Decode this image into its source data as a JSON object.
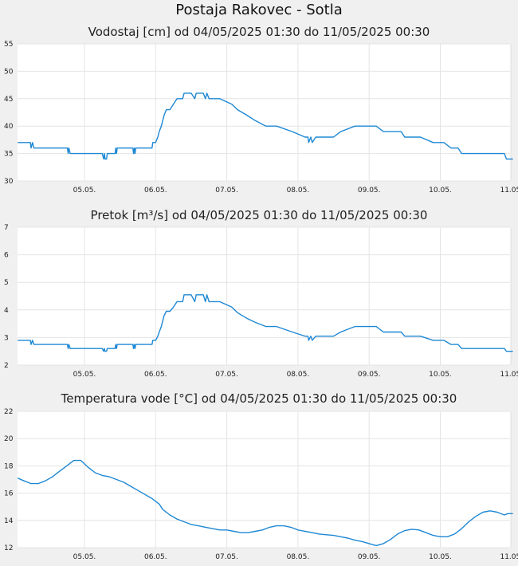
{
  "page_title": "Postaja Rakovec - Sotla",
  "chart_data": [
    {
      "type": "line",
      "title": "Vodostaj [cm] od 04/05/2025 01:30 do 11/05/2025 00:30",
      "x_tick_labels": [
        "05.05.",
        "06.05.",
        "07.05.",
        "08.05.",
        "09.05.",
        "10.05.",
        "11.05."
      ],
      "x_range": [
        0.0625,
        7.02
      ],
      "ylim": [
        30,
        55
      ],
      "y_ticks": [
        30,
        35,
        40,
        45,
        50,
        55
      ],
      "grid": true,
      "color": "#1e88d4",
      "series": [
        {
          "x": [
            0.0625,
            0.24,
            0.25,
            0.27,
            0.29,
            0.3,
            0.76,
            0.77,
            0.78,
            0.8,
            1.25,
            1.27,
            1.28,
            1.29,
            1.31,
            1.32,
            1.43,
            1.44,
            1.45,
            1.46,
            1.47,
            1.68,
            1.69,
            1.7,
            1.71,
            1.72,
            1.95,
            1.96,
            2.0,
            2.03,
            2.05,
            2.08,
            2.1,
            2.12,
            2.15,
            2.2,
            2.25,
            2.3,
            2.38,
            2.4,
            2.5,
            2.55,
            2.57,
            2.6,
            2.67,
            2.7,
            2.72,
            2.75,
            2.85,
            2.9,
            3.07,
            3.15,
            3.28,
            3.4,
            3.55,
            3.7,
            3.92,
            4.1,
            4.14,
            4.15,
            4.18,
            4.2,
            4.25,
            4.5,
            4.6,
            4.8,
            5.1,
            5.2,
            5.45,
            5.5,
            5.72,
            5.9,
            6.05,
            6.15,
            6.25,
            6.3,
            6.35,
            6.9,
            6.93,
            7.02
          ],
          "y": [
            37,
            37,
            36,
            37,
            36,
            36,
            36,
            35,
            36,
            35,
            35,
            34,
            35,
            34,
            34,
            35,
            35,
            36,
            35,
            36,
            36,
            36,
            35,
            36,
            35,
            36,
            36,
            37,
            37,
            38,
            39,
            40,
            41,
            42,
            43,
            43,
            44,
            45,
            45,
            46,
            46,
            45,
            46,
            46,
            46,
            45,
            46,
            45,
            45,
            45,
            44,
            43,
            42,
            41,
            40,
            40,
            39,
            38,
            38,
            37,
            38,
            37,
            38,
            38,
            39,
            40,
            40,
            39,
            39,
            38,
            38,
            37,
            37,
            36,
            36,
            35,
            35,
            35,
            34,
            34
          ]
        }
      ]
    },
    {
      "type": "line",
      "title": "Pretok [m³/s] od 04/05/2025 01:30 do 11/05/2025 00:30",
      "x_tick_labels": [
        "05.05.",
        "06.05.",
        "07.05.",
        "08.05.",
        "09.05.",
        "10.05.",
        "11.05."
      ],
      "x_range": [
        0.0625,
        7.02
      ],
      "ylim": [
        2,
        7
      ],
      "y_ticks": [
        2,
        3,
        4,
        5,
        6,
        7
      ],
      "grid": true,
      "color": "#1e88d4",
      "series": [
        {
          "x": [
            0.0625,
            0.24,
            0.25,
            0.27,
            0.29,
            0.3,
            0.76,
            0.77,
            0.78,
            0.8,
            1.25,
            1.27,
            1.28,
            1.29,
            1.31,
            1.32,
            1.43,
            1.44,
            1.45,
            1.46,
            1.47,
            1.68,
            1.69,
            1.7,
            1.71,
            1.72,
            1.95,
            1.96,
            2.0,
            2.03,
            2.05,
            2.08,
            2.1,
            2.12,
            2.15,
            2.2,
            2.25,
            2.3,
            2.38,
            2.4,
            2.5,
            2.55,
            2.57,
            2.6,
            2.67,
            2.7,
            2.72,
            2.75,
            2.85,
            2.9,
            3.07,
            3.15,
            3.28,
            3.4,
            3.55,
            3.7,
            3.92,
            4.1,
            4.14,
            4.15,
            4.18,
            4.2,
            4.25,
            4.5,
            4.6,
            4.8,
            5.1,
            5.2,
            5.45,
            5.5,
            5.72,
            5.9,
            6.05,
            6.15,
            6.25,
            6.3,
            6.35,
            6.9,
            6.93,
            7.02
          ],
          "y": [
            2.9,
            2.9,
            2.75,
            2.9,
            2.75,
            2.75,
            2.75,
            2.6,
            2.75,
            2.6,
            2.6,
            2.5,
            2.6,
            2.5,
            2.5,
            2.6,
            2.6,
            2.75,
            2.6,
            2.75,
            2.75,
            2.75,
            2.6,
            2.75,
            2.6,
            2.75,
            2.75,
            2.9,
            2.9,
            3.05,
            3.2,
            3.4,
            3.6,
            3.8,
            3.95,
            3.95,
            4.1,
            4.3,
            4.3,
            4.55,
            4.55,
            4.3,
            4.55,
            4.55,
            4.55,
            4.3,
            4.55,
            4.3,
            4.3,
            4.3,
            4.1,
            3.9,
            3.7,
            3.55,
            3.4,
            3.4,
            3.2,
            3.05,
            3.05,
            2.9,
            3.05,
            2.9,
            3.05,
            3.05,
            3.2,
            3.4,
            3.4,
            3.2,
            3.2,
            3.05,
            3.05,
            2.9,
            2.9,
            2.75,
            2.75,
            2.6,
            2.6,
            2.6,
            2.5,
            2.5
          ]
        }
      ]
    },
    {
      "type": "line",
      "title": "Temperatura vode [°C] od 04/05/2025 01:30 do 11/05/2025 00:30",
      "x_tick_labels": [
        "05.05.",
        "06.05.",
        "07.05.",
        "08.05.",
        "09.05.",
        "10.05.",
        "11.05."
      ],
      "x_range": [
        0.0625,
        7.02
      ],
      "ylim": [
        12,
        22
      ],
      "y_ticks": [
        12,
        14,
        16,
        18,
        20,
        22
      ],
      "grid": true,
      "color": "#1e88d4",
      "series": [
        {
          "x": [
            0.0625,
            0.15,
            0.25,
            0.35,
            0.45,
            0.55,
            0.65,
            0.75,
            0.85,
            0.95,
            1.05,
            1.15,
            1.25,
            1.35,
            1.45,
            1.55,
            1.65,
            1.75,
            1.85,
            1.95,
            2.05,
            2.1,
            2.2,
            2.3,
            2.4,
            2.5,
            2.6,
            2.7,
            2.8,
            2.9,
            3.0,
            3.1,
            3.2,
            3.3,
            3.4,
            3.5,
            3.6,
            3.7,
            3.8,
            3.9,
            4.0,
            4.1,
            4.2,
            4.3,
            4.4,
            4.5,
            4.6,
            4.7,
            4.8,
            4.9,
            5.0,
            5.1,
            5.2,
            5.3,
            5.4,
            5.5,
            5.6,
            5.7,
            5.8,
            5.9,
            6.0,
            6.1,
            6.2,
            6.3,
            6.4,
            6.5,
            6.6,
            6.7,
            6.8,
            6.9,
            6.95,
            7.02
          ],
          "y": [
            17.1,
            16.9,
            16.7,
            16.7,
            16.9,
            17.2,
            17.6,
            18.0,
            18.4,
            18.4,
            17.9,
            17.5,
            17.3,
            17.2,
            17.0,
            16.8,
            16.5,
            16.2,
            15.9,
            15.6,
            15.2,
            14.8,
            14.4,
            14.1,
            13.9,
            13.7,
            13.6,
            13.5,
            13.4,
            13.3,
            13.3,
            13.2,
            13.1,
            13.1,
            13.2,
            13.3,
            13.5,
            13.6,
            13.6,
            13.5,
            13.3,
            13.2,
            13.1,
            13.0,
            12.95,
            12.9,
            12.8,
            12.7,
            12.55,
            12.45,
            12.3,
            12.15,
            12.3,
            12.6,
            13.0,
            13.25,
            13.35,
            13.3,
            13.1,
            12.9,
            12.8,
            12.8,
            13.0,
            13.4,
            13.9,
            14.3,
            14.6,
            14.7,
            14.6,
            14.4,
            14.5,
            14.5
          ]
        }
      ]
    }
  ]
}
